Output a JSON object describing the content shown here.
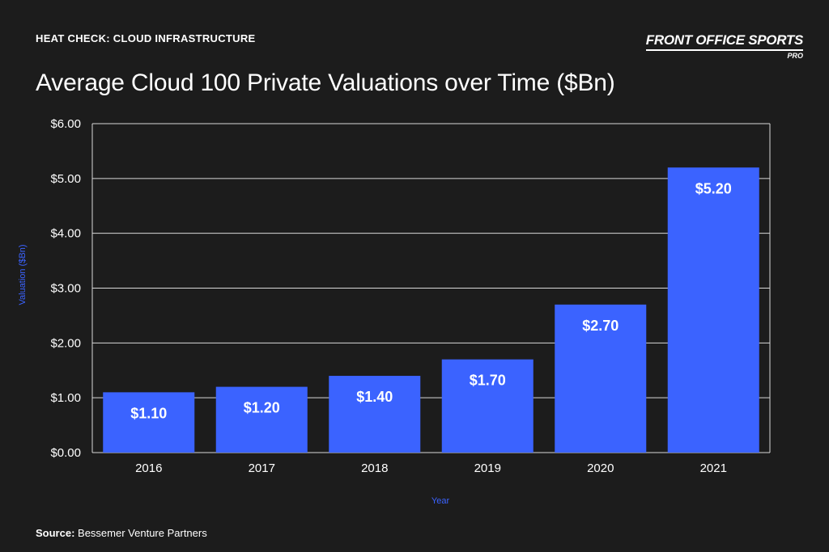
{
  "header": {
    "kicker": "HEAT CHECK: CLOUD INFRASTRUCTURE",
    "brand_name": "FRONT OFFICE SPORTS",
    "brand_sub": "PRO"
  },
  "source": {
    "label": "Source:",
    "text": "Bessemer Venture Partners"
  },
  "colors": {
    "background": "#1c1c1c",
    "bar": "#3b63ff",
    "axis_title": "#3b63ff",
    "text": "#ffffff"
  },
  "chart_data": {
    "type": "bar",
    "title": "Average Cloud 100 Private Valuations over Time ($Bn)",
    "xlabel": "Year",
    "ylabel": "Valuation ($Bn)",
    "categories": [
      "2016",
      "2017",
      "2018",
      "2019",
      "2020",
      "2021"
    ],
    "values": [
      1.1,
      1.2,
      1.4,
      1.7,
      2.7,
      5.2
    ],
    "value_labels": [
      "$1.10",
      "$1.20",
      "$1.40",
      "$1.70",
      "$2.70",
      "$5.20"
    ],
    "ylim": [
      0,
      6
    ],
    "yticks": [
      0,
      1,
      2,
      3,
      4,
      5,
      6
    ],
    "ytick_labels": [
      "$0.00",
      "$1.00",
      "$2.00",
      "$3.00",
      "$4.00",
      "$5.00",
      "$6.00"
    ],
    "grid": true,
    "legend": "none"
  }
}
